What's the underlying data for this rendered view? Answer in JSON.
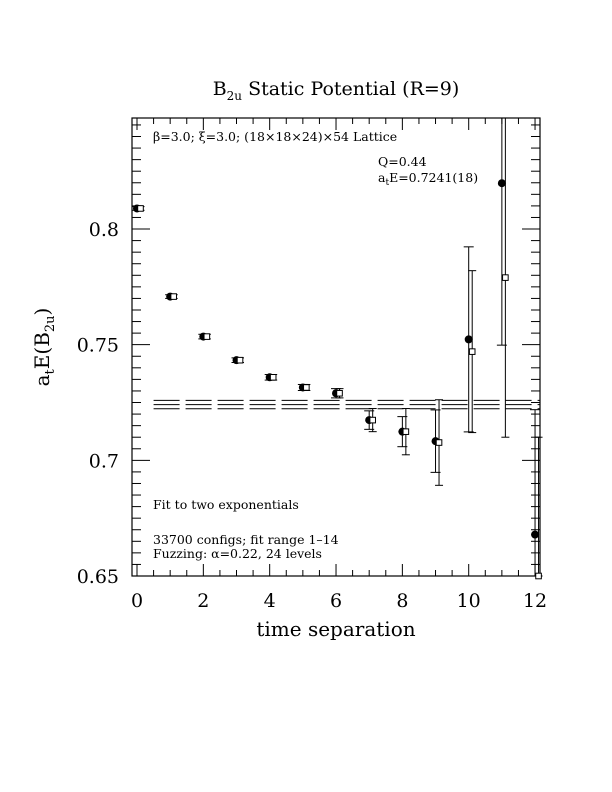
{
  "chart_data": {
    "type": "scatter",
    "title_main": "B",
    "title_sub": "2u",
    "title_rest": " Static Potential (R=9)",
    "xlabel": "time separation",
    "ylabel_pre": "a",
    "ylabel_sub_t": "t",
    "ylabel_mid": "E(B",
    "ylabel_sub_2u": "2u",
    "ylabel_post": ")",
    "xlim": [
      0,
      12
    ],
    "ylim": [
      0.65,
      0.848
    ],
    "x_ticks": [
      0,
      2,
      4,
      6,
      8,
      10,
      12
    ],
    "x_tick_labels": [
      "0",
      "2",
      "4",
      "6",
      "8",
      "10",
      "12"
    ],
    "y_ticks": [
      0.65,
      0.7,
      0.75,
      0.8
    ],
    "y_tick_labels": [
      "0.65",
      "0.7",
      "0.75",
      "0.8"
    ],
    "annotations": {
      "lattice": "β=3.0; ξ=3.0; (18×18×24)×54 Lattice",
      "q": "Q=0.44",
      "ate_pre": "a",
      "ate_sub": "t",
      "ate_post": "E=0.7241(18)",
      "fit_method": "Fit to two exponentials",
      "configs": "33700 configs; fit range 1–14",
      "fuzzing": "Fuzzing: α=0.22, 24 levels"
    },
    "series": [
      {
        "marker": "filled-circle",
        "x": [
          0,
          1,
          2,
          3,
          4,
          5,
          6,
          7,
          8,
          9,
          10,
          11,
          12
        ],
        "y": [
          0.8089,
          0.7708,
          0.7535,
          0.7433,
          0.7359,
          0.7315,
          0.729,
          0.7174,
          0.7124,
          0.7083,
          0.7523,
          0.8198,
          0.6679
        ],
        "yerr": [
          0.0008,
          0.0008,
          0.001,
          0.001,
          0.0012,
          0.0013,
          0.002,
          0.004,
          0.0065,
          0.0135,
          0.04,
          0.07,
          0.054
        ]
      },
      {
        "marker": "open-square",
        "x": [
          0,
          1,
          2,
          3,
          4,
          5,
          6,
          7,
          8,
          9,
          10,
          11,
          12
        ],
        "y": [
          0.8089,
          0.7708,
          0.7535,
          0.7433,
          0.7359,
          0.7315,
          0.729,
          0.7174,
          0.7124,
          0.7077,
          0.747,
          0.779,
          0.65
        ],
        "yerr": [
          0.0008,
          0.0008,
          0.001,
          0.001,
          0.0012,
          0.0013,
          0.002,
          0.005,
          0.01,
          0.0185,
          0.035,
          0.069,
          0.06
        ]
      }
    ],
    "fit_band": {
      "center": 0.7241,
      "error": 0.0018,
      "x_range": [
        0.5,
        12
      ]
    }
  }
}
